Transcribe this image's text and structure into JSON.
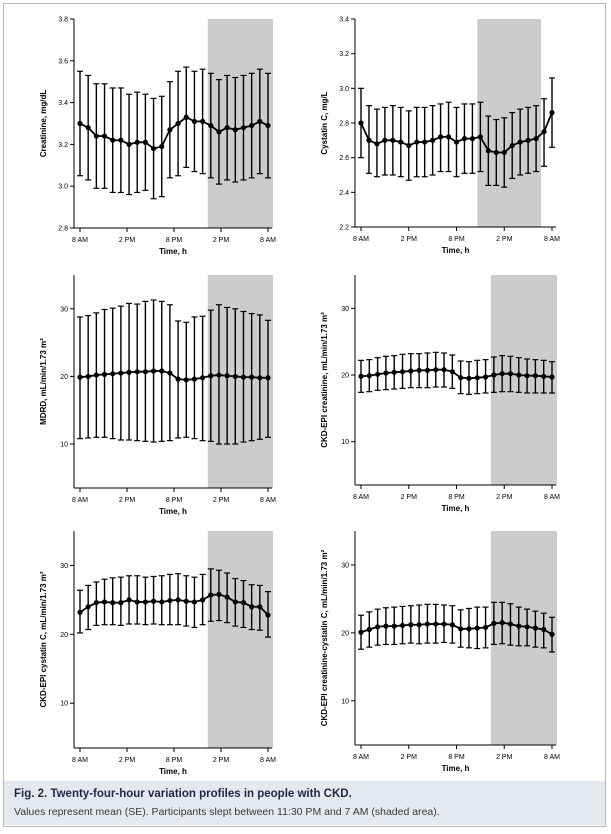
{
  "figure": {
    "label": "Fig. 2.",
    "title": "Twenty-four-hour variation profiles in people with CKD.",
    "caption": "Values represent mean (SE). Participants slept between 11:30 PM and 7 AM (shaded area)."
  },
  "colors": {
    "shade": "#cccccc",
    "line": "#000000",
    "caption_bg": "#e4e8ef",
    "caption_title": "#1e2a44"
  },
  "chart_data": [
    {
      "type": "line",
      "xlabel": "Time, h",
      "ylabel": "Creatinine, mg/dL",
      "xticks": [
        "8 AM",
        "2 PM",
        "8 PM",
        "2 PM",
        "8 AM"
      ],
      "ylim": [
        2.8,
        3.8
      ],
      "yticks": [
        "2.8",
        "3.0",
        "3.2",
        "3.4",
        "3.6",
        "3.8"
      ],
      "shaded_points": [
        16,
        23
      ],
      "series": [
        {
          "values": [
            3.3,
            3.28,
            3.24,
            3.24,
            3.22,
            3.22,
            3.2,
            3.21,
            3.21,
            3.18,
            3.19,
            3.27,
            3.3,
            3.33,
            3.31,
            3.31,
            3.29,
            3.26,
            3.28,
            3.27,
            3.28,
            3.29,
            3.31,
            3.29
          ],
          "upper": [
            3.55,
            3.53,
            3.49,
            3.49,
            3.47,
            3.47,
            3.44,
            3.45,
            3.44,
            3.42,
            3.43,
            3.5,
            3.55,
            3.57,
            3.55,
            3.56,
            3.54,
            3.51,
            3.53,
            3.52,
            3.53,
            3.54,
            3.56,
            3.54
          ],
          "lower": [
            3.05,
            3.03,
            2.99,
            2.99,
            2.97,
            2.97,
            2.96,
            2.97,
            2.98,
            2.94,
            2.95,
            3.04,
            3.05,
            3.09,
            3.07,
            3.06,
            3.04,
            3.01,
            3.03,
            3.02,
            3.03,
            3.04,
            3.06,
            3.04
          ]
        }
      ]
    },
    {
      "type": "line",
      "xlabel": "Time, h",
      "ylabel": "Cystatin C, mg/L",
      "xticks": [
        "8 AM",
        "2 PM",
        "8 PM",
        "2 PM",
        "8 AM"
      ],
      "ylim": [
        2.2,
        3.4
      ],
      "yticks": [
        "2.2",
        "2.4",
        "2.6",
        "2.8",
        "3.0",
        "3.2",
        "3.4"
      ],
      "shaded_points": [
        15,
        22
      ],
      "series": [
        {
          "values": [
            2.8,
            2.7,
            2.68,
            2.7,
            2.7,
            2.69,
            2.67,
            2.69,
            2.69,
            2.7,
            2.72,
            2.72,
            2.69,
            2.71,
            2.71,
            2.72,
            2.64,
            2.63,
            2.63,
            2.67,
            2.69,
            2.7,
            2.71,
            2.75,
            2.86
          ],
          "upper": [
            3.0,
            2.9,
            2.88,
            2.89,
            2.9,
            2.89,
            2.87,
            2.89,
            2.89,
            2.9,
            2.91,
            2.92,
            2.89,
            2.91,
            2.91,
            2.92,
            2.84,
            2.82,
            2.83,
            2.86,
            2.88,
            2.89,
            2.9,
            2.94,
            3.06
          ],
          "lower": [
            2.6,
            2.51,
            2.49,
            2.5,
            2.5,
            2.49,
            2.47,
            2.49,
            2.49,
            2.5,
            2.52,
            2.52,
            2.49,
            2.51,
            2.51,
            2.52,
            2.44,
            2.44,
            2.43,
            2.48,
            2.5,
            2.51,
            2.52,
            2.55,
            2.66
          ]
        }
      ]
    },
    {
      "type": "line",
      "xlabel": "Time, h",
      "ylabel": "MDRD, mL/min/1.73 m²",
      "xticks": [
        "8 AM",
        "2 PM",
        "8 PM",
        "2 PM",
        "8 AM"
      ],
      "ylim": [
        3.5,
        35
      ],
      "yticks": [
        "10",
        "20",
        "30"
      ],
      "yticks_values": [
        10,
        20,
        30
      ],
      "shaded_points": [
        16,
        23
      ],
      "series": [
        {
          "values": [
            19.9,
            20.0,
            20.2,
            20.3,
            20.4,
            20.5,
            20.6,
            20.7,
            20.7,
            20.8,
            20.8,
            20.5,
            19.6,
            19.5,
            19.6,
            19.8,
            20.1,
            20.2,
            20.1,
            20.0,
            19.9,
            19.9,
            19.8,
            19.8
          ],
          "upper": [
            28.8,
            29.0,
            29.4,
            29.9,
            30.1,
            30.4,
            30.8,
            30.7,
            31.1,
            31.3,
            31.1,
            30.6,
            28.2,
            28.0,
            28.8,
            28.9,
            29.8,
            30.6,
            30.2,
            30.0,
            29.6,
            29.3,
            29.1,
            28.3
          ],
          "lower": [
            10.8,
            10.9,
            11.0,
            11.0,
            10.8,
            10.6,
            10.6,
            10.5,
            10.4,
            10.3,
            10.4,
            10.5,
            10.9,
            11.0,
            10.8,
            10.5,
            10.4,
            10.0,
            10.0,
            10.0,
            10.3,
            10.5,
            10.7,
            11.0
          ]
        }
      ]
    },
    {
      "type": "line",
      "xlabel": "Time, h",
      "ylabel": "CKD-EPI creatinine, mL/min/1.73 m²",
      "xticks": [
        "8 AM",
        "2 PM",
        "8 PM",
        "2 PM",
        "8 AM"
      ],
      "ylim": [
        3.5,
        35
      ],
      "yticks": [
        "10",
        "20",
        "30"
      ],
      "yticks_values": [
        10,
        20,
        30
      ],
      "shaded_points": [
        16,
        23
      ],
      "series": [
        {
          "values": [
            19.8,
            19.9,
            20.1,
            20.3,
            20.4,
            20.5,
            20.6,
            20.7,
            20.7,
            20.8,
            20.8,
            20.5,
            19.6,
            19.5,
            19.6,
            19.7,
            20.0,
            20.2,
            20.2,
            20.0,
            19.9,
            19.9,
            19.8,
            19.7
          ],
          "upper": [
            22.2,
            22.3,
            22.6,
            22.8,
            22.9,
            23.1,
            23.2,
            23.2,
            23.3,
            23.4,
            23.3,
            23.0,
            22.1,
            22.0,
            22.2,
            22.3,
            22.7,
            22.9,
            22.8,
            22.6,
            22.4,
            22.3,
            22.2,
            22.0
          ],
          "lower": [
            17.4,
            17.5,
            17.7,
            17.8,
            17.9,
            18.0,
            18.1,
            18.1,
            18.1,
            18.2,
            18.2,
            18.0,
            17.2,
            17.1,
            17.2,
            17.3,
            17.4,
            17.5,
            17.5,
            17.4,
            17.3,
            17.3,
            17.3,
            17.3
          ]
        }
      ]
    },
    {
      "type": "line",
      "xlabel": "Time, h",
      "ylabel": "CKD-EPI cystatin C, mL/min/1.73 m²",
      "xticks": [
        "8 AM",
        "2 PM",
        "8 PM",
        "2 PM",
        "8 AM"
      ],
      "ylim": [
        3.5,
        35
      ],
      "yticks": [
        "10",
        "20",
        "30"
      ],
      "yticks_values": [
        10,
        20,
        30
      ],
      "shaded_points": [
        16,
        23
      ],
      "series": [
        {
          "values": [
            23.2,
            24.0,
            24.6,
            24.7,
            24.6,
            24.6,
            25.0,
            24.7,
            24.7,
            24.8,
            24.7,
            24.9,
            25.0,
            24.8,
            24.7,
            25.0,
            25.7,
            25.8,
            25.4,
            24.7,
            24.6,
            24.0,
            24.0,
            22.8
          ],
          "upper": [
            26.4,
            27.1,
            27.6,
            28.0,
            28.2,
            28.3,
            28.5,
            28.5,
            28.3,
            28.4,
            28.5,
            28.7,
            28.8,
            28.5,
            28.3,
            28.7,
            29.5,
            29.3,
            28.9,
            28.1,
            27.8,
            27.2,
            27.1,
            26.2
          ],
          "lower": [
            20.2,
            20.7,
            21.3,
            21.4,
            21.4,
            21.3,
            21.5,
            21.5,
            21.4,
            21.5,
            21.4,
            21.4,
            21.4,
            21.2,
            21.0,
            21.4,
            21.9,
            22.0,
            21.7,
            21.2,
            21.0,
            20.7,
            20.6,
            19.6
          ]
        }
      ]
    },
    {
      "type": "line",
      "xlabel": "Time, h",
      "ylabel": "CKD-EPI creatinine-cystatin C, mL/min/1.73 m²",
      "xticks": [
        "8 AM",
        "2 PM",
        "8 PM",
        "2 PM",
        "8 AM"
      ],
      "ylim": [
        3.5,
        35
      ],
      "yticks": [
        "10",
        "20",
        "30"
      ],
      "yticks_values": [
        10,
        20,
        30
      ],
      "shaded_points": [
        16,
        23
      ],
      "series": [
        {
          "values": [
            20.1,
            20.5,
            20.9,
            21.0,
            21.0,
            21.1,
            21.2,
            21.2,
            21.3,
            21.3,
            21.3,
            21.2,
            20.6,
            20.6,
            20.7,
            20.8,
            21.4,
            21.5,
            21.3,
            21.0,
            20.9,
            20.7,
            20.5,
            19.8
          ],
          "upper": [
            22.6,
            23.1,
            23.5,
            23.7,
            23.8,
            23.9,
            24.0,
            24.1,
            24.2,
            24.2,
            24.1,
            24.0,
            23.4,
            23.6,
            23.8,
            23.8,
            24.5,
            24.5,
            24.3,
            23.8,
            23.5,
            23.2,
            22.9,
            22.3
          ],
          "lower": [
            17.6,
            17.9,
            18.2,
            18.3,
            18.3,
            18.4,
            18.5,
            18.4,
            18.5,
            18.5,
            18.6,
            18.5,
            17.9,
            17.8,
            17.7,
            17.8,
            18.3,
            18.4,
            18.2,
            18.1,
            18.1,
            17.9,
            17.8,
            17.2
          ]
        }
      ]
    }
  ]
}
